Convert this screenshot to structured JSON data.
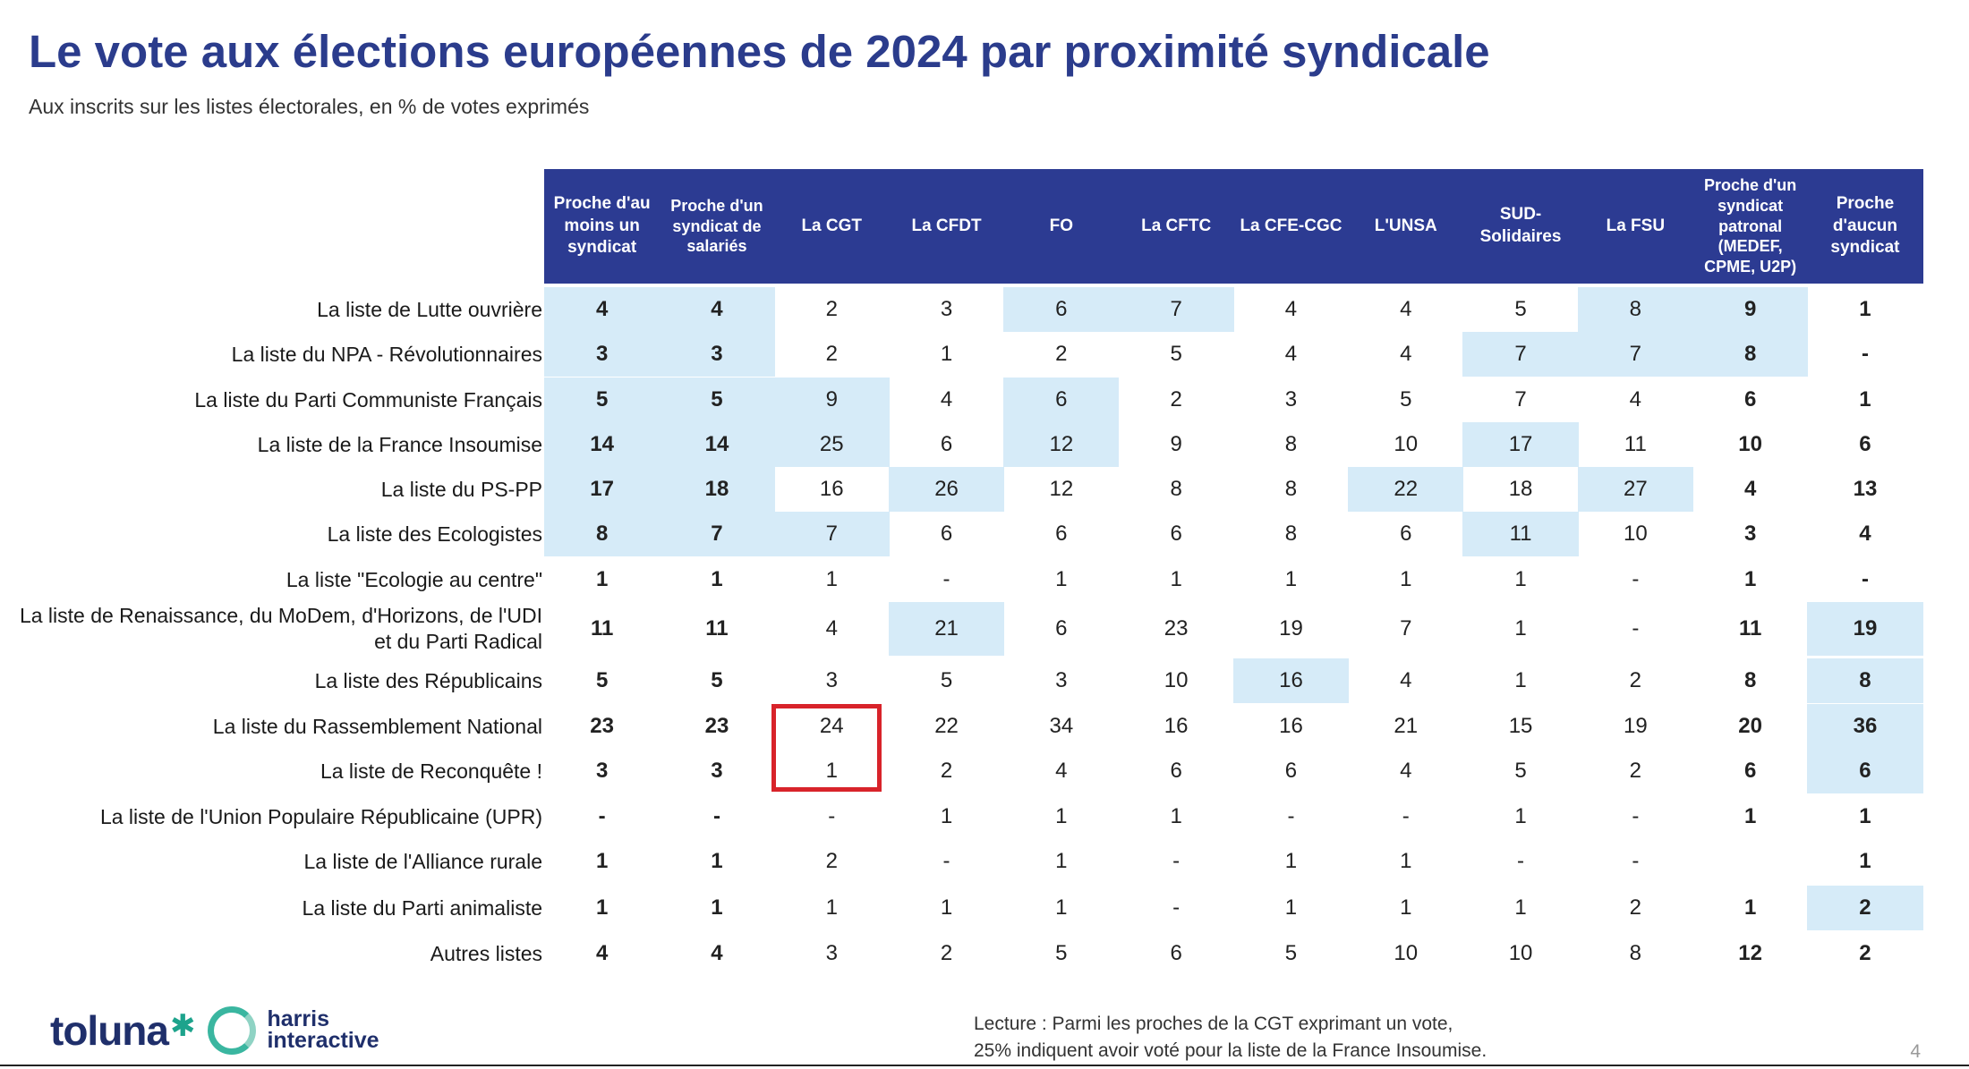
{
  "title": "Le vote aux élections européennes de 2024 par proximité syndicale",
  "subtitle": "Aux inscrits sur les listes électorales, en % de votes exprimés",
  "chart_data": {
    "type": "table",
    "columns": [
      "Proche d'au moins un syndicat",
      "Proche d'un syndicat de salariés",
      "La CGT",
      "La CFDT",
      "FO",
      "La CFTC",
      "La CFE-CGC",
      "L'UNSA",
      "SUD-Solidaires",
      "La FSU",
      "Proche d'un syndicat patronal (MEDEF, CPME, U2P)",
      "Proche d'aucun syndicat"
    ],
    "rows": [
      {
        "label": "La liste de Lutte ouvrière",
        "values": [
          "4",
          "4",
          "2",
          "3",
          "6",
          "7",
          "4",
          "4",
          "5",
          "8",
          "9",
          "1"
        ],
        "highlight": [
          0,
          1,
          4,
          5,
          9,
          10
        ]
      },
      {
        "label": "La liste du NPA - Révolutionnaires",
        "values": [
          "3",
          "3",
          "2",
          "1",
          "2",
          "5",
          "4",
          "4",
          "7",
          "7",
          "8",
          "-"
        ],
        "highlight": [
          0,
          1,
          8,
          9,
          10
        ]
      },
      {
        "label": "La liste du Parti Communiste Français",
        "values": [
          "5",
          "5",
          "9",
          "4",
          "6",
          "2",
          "3",
          "5",
          "7",
          "4",
          "6",
          "1"
        ],
        "highlight": [
          0,
          1,
          2,
          4
        ]
      },
      {
        "label": "La liste de la France Insoumise",
        "values": [
          "14",
          "14",
          "25",
          "6",
          "12",
          "9",
          "8",
          "10",
          "17",
          "11",
          "10",
          "6"
        ],
        "highlight": [
          0,
          1,
          2,
          4,
          8
        ]
      },
      {
        "label": "La liste du PS-PP",
        "values": [
          "17",
          "18",
          "16",
          "26",
          "12",
          "8",
          "8",
          "22",
          "18",
          "27",
          "4",
          "13"
        ],
        "highlight": [
          0,
          1,
          3,
          7,
          9
        ]
      },
      {
        "label": "La liste des Ecologistes",
        "values": [
          "8",
          "7",
          "7",
          "6",
          "6",
          "6",
          "8",
          "6",
          "11",
          "10",
          "3",
          "4"
        ],
        "highlight": [
          0,
          1,
          2,
          8
        ]
      },
      {
        "label": "La liste \"Ecologie au centre\"",
        "values": [
          "1",
          "1",
          "1",
          "-",
          "1",
          "1",
          "1",
          "1",
          "1",
          "-",
          "1",
          "-"
        ],
        "highlight": []
      },
      {
        "label": "La liste de Renaissance, du MoDem, d'Horizons, de l'UDI et du Parti Radical",
        "values": [
          "11",
          "11",
          "4",
          "21",
          "6",
          "23",
          "19",
          "7",
          "1",
          "-",
          "11",
          "19"
        ],
        "highlight": [
          3,
          11
        ]
      },
      {
        "label": "La liste des Républicains",
        "values": [
          "5",
          "5",
          "3",
          "5",
          "3",
          "10",
          "16",
          "4",
          "1",
          "2",
          "8",
          "8"
        ],
        "highlight": [
          6,
          11
        ]
      },
      {
        "label": "La liste du Rassemblement National",
        "values": [
          "23",
          "23",
          "24",
          "22",
          "34",
          "16",
          "16",
          "21",
          "15",
          "19",
          "20",
          "36"
        ],
        "highlight": [
          11
        ]
      },
      {
        "label": "La liste de Reconquête !",
        "values": [
          "3",
          "3",
          "1",
          "2",
          "4",
          "6",
          "6",
          "4",
          "5",
          "2",
          "6",
          "6"
        ],
        "highlight": [
          11
        ]
      },
      {
        "label": "La liste de l'Union Populaire Républicaine (UPR)",
        "values": [
          "-",
          "-",
          "-",
          "1",
          "1",
          "1",
          "-",
          "-",
          "1",
          "-",
          "1",
          "1"
        ],
        "highlight": []
      },
      {
        "label": "La liste  de l'Alliance rurale",
        "values": [
          "1",
          "1",
          "2",
          "-",
          "1",
          "-",
          "1",
          "1",
          "-",
          "-",
          "",
          "1"
        ],
        "highlight": []
      },
      {
        "label": "La liste du Parti animaliste",
        "values": [
          "1",
          "1",
          "1",
          "1",
          "1",
          "-",
          "1",
          "1",
          "1",
          "2",
          "1",
          "2"
        ],
        "highlight": [
          11
        ]
      },
      {
        "label": "Autres listes",
        "values": [
          "4",
          "4",
          "3",
          "2",
          "5",
          "6",
          "5",
          "10",
          "10",
          "8",
          "12",
          "2"
        ],
        "highlight": []
      }
    ],
    "bold_columns": [
      0,
      1,
      10,
      11
    ]
  },
  "footer": {
    "logo_primary": "toluna",
    "logo_secondary": "harris interactive",
    "reading_line1": "Lecture : Parmi les proches de la CGT exprimant un vote,",
    "reading_line2": "25% indiquent avoir voté pour la liste de la France Insoumise.",
    "page_number": "4"
  },
  "colors": {
    "header": "#2c3b92",
    "highlight": "#d6ebf8",
    "title": "#2b3c8c",
    "annotation_box": "#d8232a"
  }
}
